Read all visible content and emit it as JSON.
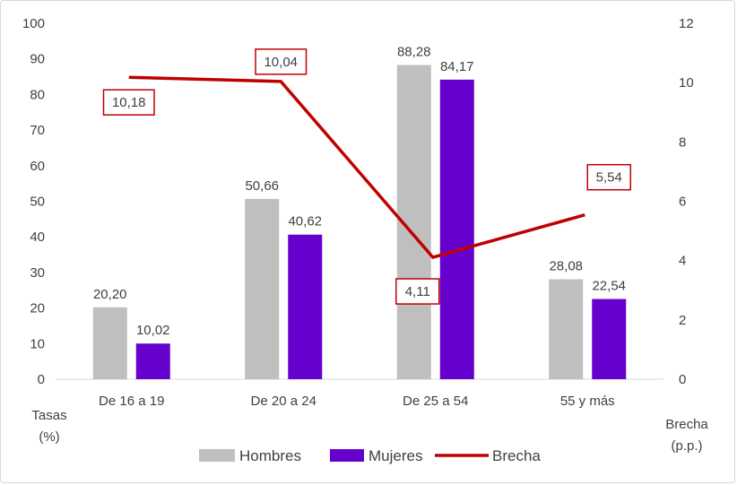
{
  "chart_data": {
    "type": "bar",
    "title": "",
    "categories": [
      "De 16 a 19",
      "De 20 a 24",
      "De 25 a 54",
      "55 y más"
    ],
    "series": [
      {
        "name": "Hombres",
        "type": "bar",
        "axis": "left",
        "color": "#BFBFBF",
        "values": [
          20.2,
          50.66,
          88.28,
          28.08
        ],
        "labels": [
          "20,20",
          "50,66",
          "88,28",
          "28,08"
        ]
      },
      {
        "name": "Mujeres",
        "type": "bar",
        "axis": "left",
        "color": "#6600CC",
        "values": [
          10.02,
          40.62,
          84.17,
          22.54
        ],
        "labels": [
          "10,02",
          "40,62",
          "84,17",
          "22,54"
        ]
      },
      {
        "name": "Brecha",
        "type": "line",
        "axis": "right",
        "color": "#C00000",
        "values": [
          10.18,
          10.04,
          4.11,
          5.54
        ],
        "labels": [
          "10,18",
          "10,04",
          "4,11",
          "5,54"
        ]
      }
    ],
    "ylabel_left": [
      "Tasas",
      "(%)"
    ],
    "ylabel_right": [
      "Brecha",
      "(p.p.)"
    ],
    "ylim_left": [
      0,
      100
    ],
    "yticks_left": [
      0,
      10,
      20,
      30,
      40,
      50,
      60,
      70,
      80,
      90,
      100
    ],
    "ylim_right": [
      0,
      12
    ],
    "yticks_right": [
      0,
      2,
      4,
      6,
      8,
      10,
      12
    ],
    "grid": false,
    "legend_position": "bottom"
  }
}
